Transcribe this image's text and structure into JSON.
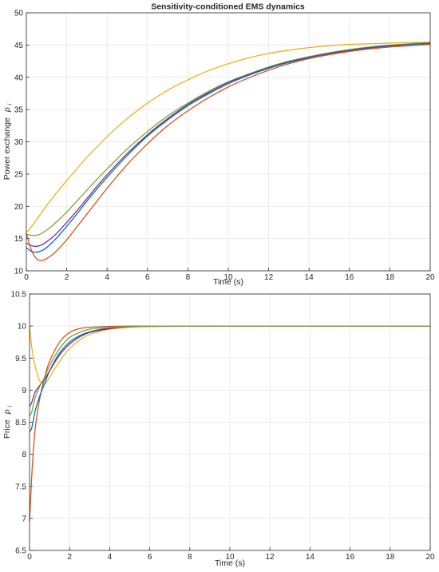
{
  "colors": {
    "blue": "#0072BD",
    "orange": "#D95319",
    "yellow": "#EDB120",
    "purple": "#7E2F8E",
    "green": "#77AC30",
    "grid": "#e6e6e6",
    "axis": "#262626"
  },
  "chart_data": [
    {
      "type": "line",
      "title": "Sensitivity-conditioned EMS dynamics",
      "xlabel": "Time (s)",
      "ylabel_main": "Power  exchange",
      "ylabel_sym": "p",
      "ylabel_sub": "i",
      "xlim": [
        0,
        20
      ],
      "ylim": [
        10,
        50
      ],
      "xticks": [
        "0",
        "2",
        "4",
        "6",
        "8",
        "10",
        "12",
        "14",
        "16",
        "18",
        "20"
      ],
      "yticks": [
        "10",
        "15",
        "20",
        "25",
        "30",
        "35",
        "40",
        "45",
        "50"
      ],
      "grid": true,
      "x": [
        0,
        0.25,
        0.5,
        0.75,
        1,
        1.25,
        1.5,
        2,
        2.5,
        3,
        3.5,
        4,
        5,
        6,
        7,
        8,
        9,
        10,
        11,
        12,
        13,
        14,
        15,
        16,
        17,
        18,
        19,
        20
      ],
      "series": [
        {
          "color": "#EDB120",
          "values": [
            15.9,
            16.8,
            17.9,
            19.0,
            20.1,
            21.1,
            22.1,
            24.0,
            25.8,
            27.6,
            29.2,
            30.8,
            33.6,
            36.0,
            38.0,
            39.6,
            41.0,
            42.1,
            43.0,
            43.7,
            44.2,
            44.6,
            44.9,
            45.1,
            45.2,
            45.3,
            45.4,
            45.4
          ]
        },
        {
          "color": "#77AC30",
          "values": [
            15.7,
            15.5,
            15.5,
            15.8,
            16.3,
            16.9,
            17.6,
            19.1,
            20.8,
            22.5,
            24.2,
            25.8,
            28.9,
            31.6,
            34.0,
            36.0,
            37.8,
            39.3,
            40.5,
            41.6,
            42.5,
            43.2,
            43.8,
            44.3,
            44.7,
            45.0,
            45.2,
            45.4
          ]
        },
        {
          "color": "#7E2F8E",
          "values": [
            14.3,
            13.9,
            13.8,
            14.0,
            14.5,
            15.1,
            15.8,
            17.5,
            19.3,
            21.2,
            23.1,
            24.9,
            28.2,
            31.1,
            33.6,
            35.8,
            37.6,
            39.2,
            40.4,
            41.5,
            42.4,
            43.1,
            43.7,
            44.2,
            44.6,
            44.9,
            45.1,
            45.3
          ]
        },
        {
          "color": "#0072BD",
          "values": [
            13.6,
            13.0,
            12.9,
            13.1,
            13.6,
            14.3,
            15.1,
            16.9,
            18.8,
            20.8,
            22.7,
            24.5,
            27.9,
            30.9,
            33.4,
            35.6,
            37.4,
            39.0,
            40.3,
            41.4,
            42.3,
            43.0,
            43.6,
            44.1,
            44.5,
            44.8,
            45.1,
            45.2
          ]
        },
        {
          "color": "#D95319",
          "values": [
            15.8,
            13.2,
            11.9,
            11.6,
            11.9,
            12.4,
            13.1,
            14.8,
            16.8,
            18.8,
            20.8,
            22.8,
            26.5,
            29.7,
            32.5,
            34.8,
            36.8,
            38.5,
            39.9,
            41.1,
            42.1,
            42.9,
            43.5,
            44.0,
            44.4,
            44.7,
            44.9,
            45.1
          ]
        }
      ]
    },
    {
      "type": "line",
      "title": "",
      "xlabel": "Time (s)",
      "ylabel_main": "Price",
      "ylabel_sym": "p",
      "ylabel_sub": "i",
      "xlim": [
        0,
        20
      ],
      "ylim": [
        6.5,
        10.5
      ],
      "xticks": [
        "0",
        "2",
        "4",
        "6",
        "8",
        "10",
        "12",
        "14",
        "16",
        "18",
        "20"
      ],
      "yticks": [
        "6.5",
        "7",
        "7.5",
        "8",
        "8.5",
        "9",
        "9.5",
        "10",
        "10.5"
      ],
      "grid": true,
      "x": [
        0,
        0.1,
        0.2,
        0.3,
        0.5,
        0.75,
        1,
        1.5,
        2,
        2.5,
        3,
        4,
        5,
        6,
        8,
        10,
        12,
        14,
        16,
        18,
        20
      ],
      "series": [
        {
          "color": "#EDB120",
          "values": [
            10.0,
            9.7,
            9.5,
            9.35,
            9.15,
            9.1,
            9.2,
            9.45,
            9.65,
            9.78,
            9.87,
            9.95,
            9.98,
            9.99,
            10.0,
            10.0,
            10.0,
            10.0,
            10.0,
            10.0,
            10.0
          ]
        },
        {
          "color": "#D95319",
          "values": [
            6.95,
            7.6,
            8.1,
            8.45,
            8.85,
            9.2,
            9.45,
            9.75,
            9.9,
            9.96,
            9.98,
            9.995,
            10.0,
            10.0,
            10.0,
            10.0,
            10.0,
            10.0,
            10.0,
            10.0,
            10.0
          ]
        },
        {
          "color": "#0072BD",
          "values": [
            8.35,
            8.4,
            8.55,
            8.7,
            8.9,
            9.1,
            9.3,
            9.58,
            9.75,
            9.85,
            9.91,
            9.97,
            9.99,
            10.0,
            10.0,
            10.0,
            10.0,
            10.0,
            10.0,
            10.0,
            10.0
          ]
        },
        {
          "color": "#7E2F8E",
          "values": [
            8.75,
            8.8,
            8.9,
            8.98,
            9.07,
            9.17,
            9.3,
            9.55,
            9.72,
            9.83,
            9.9,
            9.96,
            9.99,
            10.0,
            10.0,
            10.0,
            10.0,
            10.0,
            10.0,
            10.0,
            10.0
          ]
        },
        {
          "color": "#77AC30",
          "values": [
            8.6,
            8.65,
            8.78,
            8.9,
            9.05,
            9.2,
            9.38,
            9.65,
            9.82,
            9.9,
            9.95,
            9.98,
            9.99,
            10.0,
            10.0,
            10.0,
            10.0,
            10.0,
            10.0,
            10.0,
            10.0
          ]
        }
      ]
    }
  ]
}
